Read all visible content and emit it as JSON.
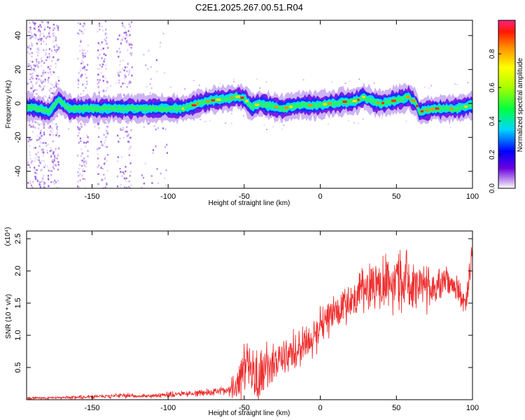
{
  "title": "C2E1.2025.267.00.51.R04",
  "colors": {
    "snr_line": "#ee2f2f",
    "axis": "#000000"
  },
  "chart_data": [
    {
      "type": "heatmap",
      "xlabel": "Height of straight line (km)",
      "ylabel": "Frequency (Hz)",
      "xlim": [
        -193,
        100
      ],
      "ylim": [
        -50,
        49
      ],
      "xticks": [
        -150,
        -100,
        -50,
        0,
        50,
        100
      ],
      "xtick_labels": [
        "-150",
        "-100",
        "-50",
        "0",
        "50",
        "100"
      ],
      "yticks": [
        -40,
        -20,
        0,
        20,
        40
      ],
      "ytick_labels": [
        "-40",
        "-20",
        "0",
        "20",
        "40"
      ],
      "colorbar": {
        "label": "Normalized spectral amplitude",
        "range": [
          0,
          1
        ],
        "ticks": [
          0.0,
          0.2,
          0.4,
          0.6,
          0.8
        ],
        "tick_labels": [
          "0.0",
          "0.2",
          "0.4",
          "0.6",
          "0.8"
        ],
        "colormap": "rainbow"
      },
      "ridge": {
        "x": [
          -193,
          -185,
          -178,
          -172,
          -165,
          -160,
          -150,
          -140,
          -130,
          -120,
          -110,
          -100,
          -90,
          -80,
          -70,
          -60,
          -55,
          -50,
          -45,
          -40,
          -35,
          -30,
          -25,
          -20,
          -15,
          -10,
          -5,
          0,
          5,
          10,
          15,
          20,
          25,
          28,
          30,
          35,
          40,
          45,
          50,
          55,
          58,
          60,
          63,
          65,
          70,
          75,
          80,
          85,
          90,
          95,
          100
        ],
        "freq": [
          -2,
          -3,
          -5,
          2,
          -3,
          -3,
          -3,
          -3,
          -3,
          -3,
          -3,
          -3,
          -3,
          0,
          2,
          3,
          4,
          3,
          -2,
          0,
          -1,
          -2,
          -3,
          -2,
          -1,
          -1,
          -1,
          -1,
          0,
          0,
          1,
          1,
          2,
          4,
          3,
          1,
          0,
          1,
          2,
          3,
          4,
          2,
          0,
          -5,
          -4,
          -3,
          -3,
          -3,
          -3,
          -2,
          -1
        ]
      }
    },
    {
      "type": "line",
      "xlabel": "Height of straight line (km)",
      "ylabel": "SNR (10 * v/v)",
      "scale_label": "(x10⁴)",
      "xlim": [
        -193,
        100
      ],
      "ylim": [
        0,
        2.62
      ],
      "xticks": [
        -150,
        -100,
        -50,
        0,
        50,
        100
      ],
      "xtick_labels": [
        "-150",
        "-100",
        "-50",
        "0",
        "50",
        "100"
      ],
      "yticks": [
        0.5,
        1.0,
        1.5,
        2.0,
        2.5
      ],
      "ytick_labels": [
        "0.5",
        "1.0",
        "1.5",
        "2.0",
        "2.5"
      ],
      "series": [
        {
          "x": [
            -193,
            -180,
            -170,
            -160,
            -150,
            -140,
            -130,
            -120,
            -110,
            -100,
            -90,
            -80,
            -70,
            -60,
            -55,
            -52,
            -50,
            -48,
            -45,
            -42,
            -40,
            -38,
            -35,
            -30,
            -25,
            -20,
            -15,
            -10,
            -5,
            0,
            5,
            10,
            15,
            20,
            25,
            30,
            35,
            40,
            45,
            50,
            55,
            60,
            65,
            70,
            75,
            80,
            85,
            90,
            93,
            95,
            97,
            100
          ],
          "center": [
            0.02,
            0.03,
            0.03,
            0.04,
            0.05,
            0.05,
            0.07,
            0.05,
            0.06,
            0.08,
            0.09,
            0.1,
            0.12,
            0.15,
            0.25,
            0.4,
            0.55,
            0.6,
            0.4,
            0.3,
            0.35,
            0.3,
            0.5,
            0.55,
            0.6,
            0.7,
            0.8,
            0.9,
            1.0,
            1.1,
            1.2,
            1.4,
            1.45,
            1.55,
            1.65,
            1.72,
            1.8,
            1.82,
            1.85,
            1.82,
            1.85,
            1.82,
            1.8,
            1.75,
            1.75,
            1.78,
            1.8,
            1.75,
            1.65,
            1.4,
            1.7,
            2.3
          ],
          "spread": [
            0.02,
            0.02,
            0.02,
            0.03,
            0.03,
            0.03,
            0.04,
            0.03,
            0.03,
            0.04,
            0.04,
            0.05,
            0.06,
            0.08,
            0.3,
            0.5,
            0.45,
            0.4,
            0.45,
            0.5,
            0.4,
            0.35,
            0.4,
            0.3,
            0.3,
            0.3,
            0.3,
            0.3,
            0.3,
            0.3,
            0.3,
            0.3,
            0.3,
            0.3,
            0.35,
            0.35,
            0.4,
            0.4,
            0.45,
            0.45,
            0.45,
            0.4,
            0.4,
            0.35,
            0.3,
            0.25,
            0.2,
            0.2,
            0.2,
            0.2,
            0.2,
            0.2
          ]
        }
      ]
    }
  ]
}
